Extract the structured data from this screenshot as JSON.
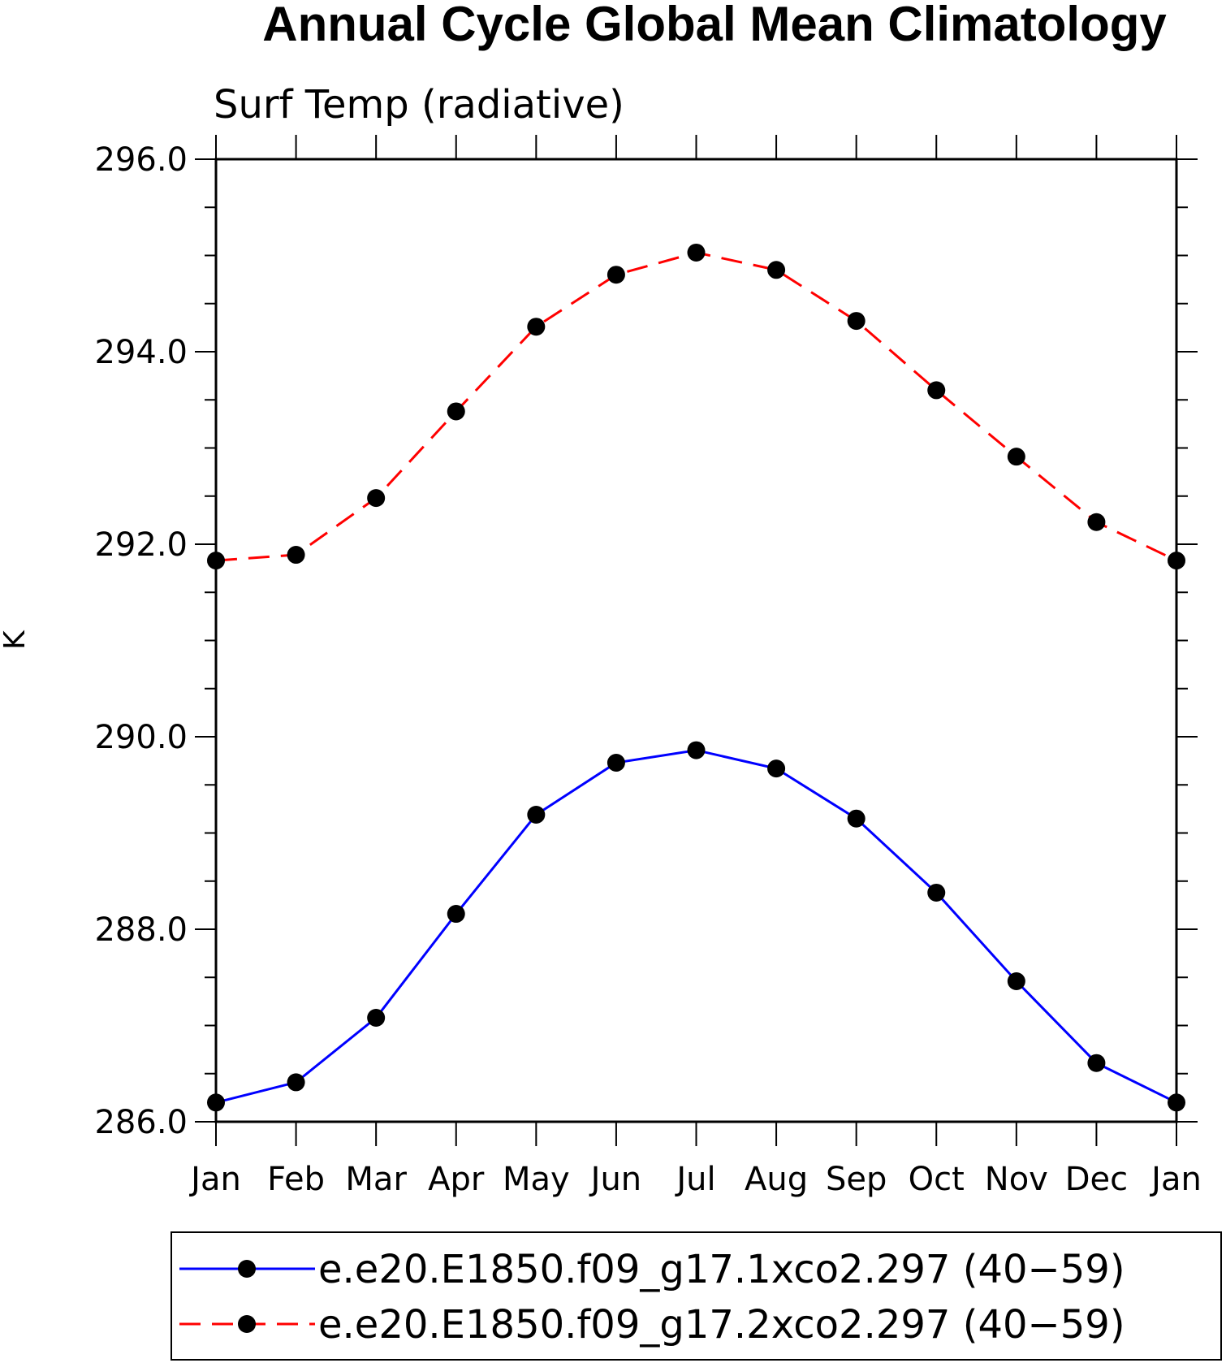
{
  "chart_data": {
    "type": "line",
    "title": "Annual Cycle Global Mean Climatology",
    "subtitle": "Surf Temp (radiative)",
    "xlabel": "",
    "ylabel": "K",
    "categories": [
      "Jan",
      "Feb",
      "Mar",
      "Apr",
      "May",
      "Jun",
      "Jul",
      "Aug",
      "Sep",
      "Oct",
      "Nov",
      "Dec",
      "Jan"
    ],
    "ylim": [
      286.0,
      296.0
    ],
    "y_major_ticks": [
      296.0,
      294.0,
      292.0,
      290.0,
      288.0,
      286.0
    ],
    "y_tick_labels": [
      "296.0",
      "294.0",
      "292.0",
      "290.0",
      "288.0",
      "286.0"
    ],
    "y_minor_step": 0.5,
    "grid": false,
    "legend_position": "bottom",
    "series": [
      {
        "name": "e.e20.E1850.f09_g17.1xco2.297 (40−59)",
        "color": "#0000ff",
        "line_style": "solid",
        "marker": "filled-circle",
        "values": [
          286.2,
          286.41,
          287.08,
          288.16,
          289.19,
          289.73,
          289.86,
          289.67,
          289.15,
          288.38,
          287.46,
          286.61,
          286.2
        ]
      },
      {
        "name": "e.e20.E1850.f09_g17.2xco2.297 (40−59)",
        "color": "#ff0000",
        "line_style": "dashed",
        "marker": "filled-circle",
        "values": [
          291.83,
          291.89,
          292.48,
          293.38,
          294.26,
          294.8,
          295.03,
          294.85,
          294.32,
          293.6,
          292.91,
          292.23,
          291.83
        ]
      }
    ]
  }
}
